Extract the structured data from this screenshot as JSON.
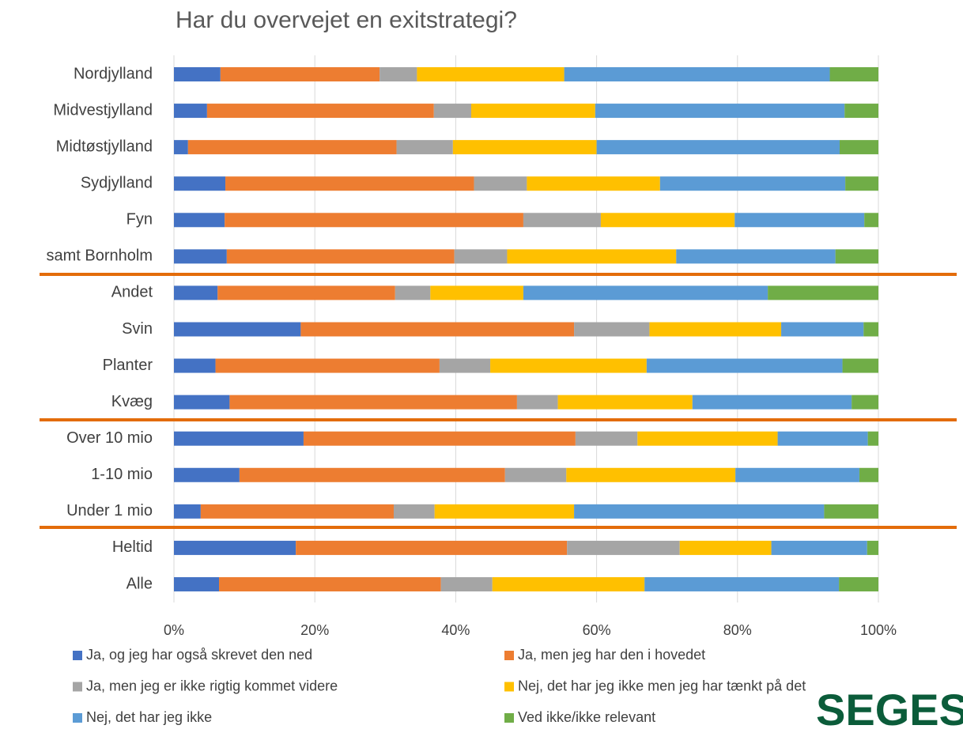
{
  "chart_data": {
    "type": "stacked_bar_horizontal",
    "title": "Har du overvejet en exitstrategi?",
    "categories": [
      "Nordjylland",
      "Midvestjylland",
      "Midtøstjylland",
      "Sydjylland",
      "Fyn",
      "samt Bornholm",
      "Andet",
      "Svin",
      "Planter",
      "Kvæg",
      "Over 10 mio",
      "1-10 mio",
      "Under 1 mio",
      "Heltid",
      "Alle"
    ],
    "series": [
      {
        "name": "Ja, og jeg har også skrevet den ned",
        "color": "#4472c4",
        "values": [
          6.6,
          4.7,
          2.0,
          7.3,
          7.2,
          7.5,
          6.2,
          18.0,
          5.9,
          7.9,
          18.4,
          9.3,
          3.8,
          17.3,
          6.4
        ]
      },
      {
        "name": "Ja, men jeg har den i hovedet",
        "color": "#ed7d31",
        "values": [
          22.6,
          32.2,
          29.6,
          35.3,
          42.4,
          32.3,
          25.2,
          38.8,
          31.8,
          40.8,
          38.6,
          37.7,
          27.4,
          38.5,
          31.5
        ]
      },
      {
        "name": "Ja, men jeg er ikke rigtig kommet videre",
        "color": "#a5a5a5",
        "values": [
          5.3,
          5.3,
          8.0,
          7.5,
          11.0,
          7.5,
          5.0,
          10.7,
          7.2,
          5.8,
          8.8,
          8.7,
          5.8,
          16.0,
          7.3
        ]
      },
      {
        "name": "Nej, det har jeg ikke men jeg har tænkt på det",
        "color": "#ffc000",
        "values": [
          20.9,
          17.6,
          20.4,
          18.9,
          19.0,
          24.0,
          13.2,
          18.7,
          22.2,
          19.1,
          19.9,
          24.0,
          19.8,
          13.0,
          21.6
        ]
      },
      {
        "name": "Nej, det har jeg ikke",
        "color": "#5b9bd5",
        "values": [
          37.7,
          35.4,
          34.5,
          26.3,
          18.4,
          22.6,
          34.7,
          11.7,
          27.8,
          22.6,
          12.8,
          17.6,
          35.5,
          13.6,
          27.6
        ]
      },
      {
        "name": "Ved ikke/ikke relevant",
        "color": "#70ad47",
        "values": [
          6.9,
          4.8,
          5.5,
          4.7,
          2.0,
          6.1,
          15.7,
          2.1,
          5.1,
          3.8,
          1.5,
          2.7,
          7.7,
          1.6,
          5.6
        ]
      }
    ],
    "xlim": [
      0,
      100
    ],
    "xticks": [
      {
        "value": 0,
        "label": "0%"
      },
      {
        "value": 20,
        "label": "20%"
      },
      {
        "value": 40,
        "label": "40%"
      },
      {
        "value": 60,
        "label": "60%"
      },
      {
        "value": 80,
        "label": "80%"
      },
      {
        "value": 100,
        "label": "100%"
      }
    ],
    "grid": true,
    "logo": "SEGES"
  }
}
